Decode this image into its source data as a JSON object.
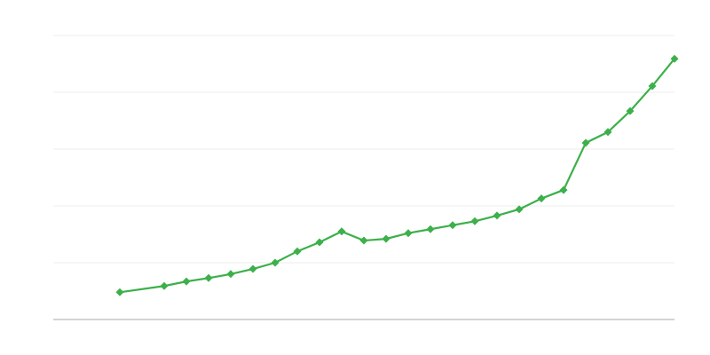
{
  "chart_data": {
    "type": "line",
    "x": [
      3,
      5,
      6,
      7,
      8,
      9,
      10,
      11,
      12,
      13,
      14,
      15,
      16,
      17,
      18,
      19,
      20,
      21,
      22,
      23,
      24,
      25,
      26,
      27,
      28
    ],
    "series": [
      {
        "color": "#3cb04a",
        "values": [
          0.48,
          0.59,
          0.67,
          0.73,
          0.8,
          0.89,
          1.0,
          1.2,
          1.36,
          1.55,
          1.39,
          1.42,
          1.52,
          1.59,
          1.66,
          1.73,
          1.83,
          1.94,
          2.13,
          2.28,
          3.11,
          3.3,
          3.67,
          4.11,
          4.59
        ]
      }
    ],
    "xlim": [
      0,
      28
    ],
    "ylim": [
      0,
      5
    ],
    "yticks": [
      0,
      1,
      2,
      3,
      4,
      5
    ],
    "grid": true
  }
}
